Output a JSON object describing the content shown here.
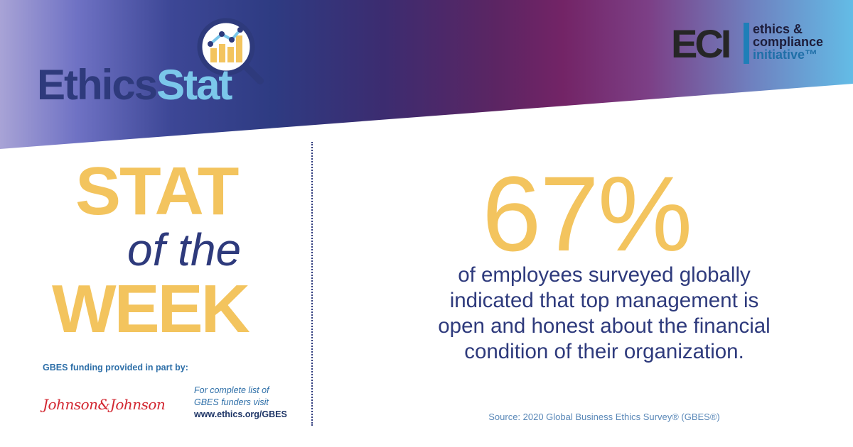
{
  "header": {
    "logo": {
      "part1": "Ethics",
      "part2": "Stat",
      "icon": "magnifier-chart-icon"
    },
    "eci": {
      "mark": "ECI",
      "line1": "ethics &",
      "line2": "compliance",
      "line3": "initiative™"
    }
  },
  "left_panel": {
    "title_line1": "STAT",
    "title_line2": "of the",
    "title_line3": "WEEK",
    "funding_label": "GBES funding provided in part by:",
    "sponsor_logo": "Johnson&Johnson",
    "funders_note": {
      "line1": "For complete list of",
      "line2": "GBES funders visit",
      "url": "www.ethics.org/GBES"
    }
  },
  "right_panel": {
    "stat_value": "67%",
    "description": [
      "of employees surveyed globally",
      "indicated that top management is",
      "open and honest about the financial",
      "condition of their organization."
    ],
    "source": "Source: 2020 Global Business Ethics Survey® (GBES®)"
  },
  "colors": {
    "navy": "#2e3a7c",
    "gold": "#f3c45e",
    "light_blue": "#7bc7ea",
    "eci_blue": "#1f7fb8",
    "jj_red": "#d22630"
  }
}
